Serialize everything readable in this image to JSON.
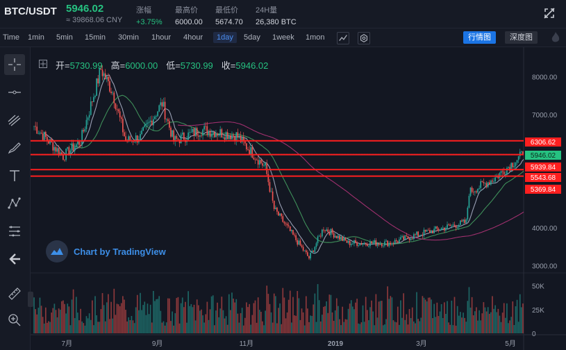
{
  "header": {
    "pair": "BTC/USDT",
    "price": "5946.02",
    "cny": "≈ 39868.06 CNY",
    "change_label": "涨幅",
    "change_value": "+3.75%",
    "high_label": "最高价",
    "high_value": "6000.00",
    "low_label": "最低价",
    "low_value": "5674.70",
    "vol_label": "24H量",
    "vol_value": "26,380 BTC",
    "icon": "fullscreen-off-icon"
  },
  "toolbar": {
    "intervals": [
      "Time",
      "1min",
      "5min",
      "15min",
      "30min",
      "1hour",
      "4hour",
      "1day",
      "5day",
      "1week",
      "1mon"
    ],
    "active_interval": "1day",
    "tab_candles": "行情图",
    "tab_depth": "深度图"
  },
  "legend": {
    "open_label": "开=",
    "open_value": "5730.99",
    "high_label": "高=",
    "high_value": "6000.00",
    "low_label": "低=",
    "low_value": "5730.99",
    "close_label": "收=",
    "close_value": "5946.02"
  },
  "watermark": "Chart by TradingView",
  "price_axis": {
    "ticks": [
      "8000.00",
      "7000.00",
      "4000.00",
      "3000.00"
    ],
    "tick_values": [
      8000,
      7000,
      4000,
      3000
    ],
    "levels": [
      {
        "label": "6306.62",
        "value": 6306.62,
        "color": "#ff1f1f"
      },
      {
        "label": "5946.02",
        "value": 5946.02,
        "color": "#26c281"
      },
      {
        "label": "5939.84",
        "value": 5939.84,
        "color": "#ff1f1f"
      },
      {
        "label": "5543.68",
        "value": 5543.68,
        "color": "#ff1f1f"
      },
      {
        "label": "5369.84",
        "value": 5369.84,
        "color": "#ff1f1f"
      }
    ]
  },
  "volume_axis": {
    "ticks": [
      "50K",
      "25K",
      "0"
    ]
  },
  "time_axis": {
    "ticks": [
      "7月",
      "9月",
      "11月",
      "2019",
      "3月",
      "5月"
    ]
  },
  "colors": {
    "up": "#26a69a",
    "down": "#ef5350",
    "line_level": "#ff1f1f",
    "ma_fast": "#9aa0b5",
    "ma_mid": "#3f8f5a",
    "ma_slow": "#a0306e"
  },
  "chart_data": {
    "type": "candlestick",
    "x_range": [
      "2018-06-08",
      "2019-05-10"
    ],
    "key_points": [
      {
        "date": "2018-06-08",
        "close": 6700
      },
      {
        "date": "2018-06-28",
        "close": 5900
      },
      {
        "date": "2018-07-10",
        "close": 6300
      },
      {
        "date": "2018-07-24",
        "close": 8200
      },
      {
        "date": "2018-08-01",
        "close": 7600
      },
      {
        "date": "2018-08-10",
        "close": 6300
      },
      {
        "date": "2018-08-20",
        "close": 6400
      },
      {
        "date": "2018-09-04",
        "close": 7300
      },
      {
        "date": "2018-09-12",
        "close": 6300
      },
      {
        "date": "2018-10-01",
        "close": 6600
      },
      {
        "date": "2018-10-25",
        "close": 6450
      },
      {
        "date": "2018-11-14",
        "close": 5600
      },
      {
        "date": "2018-11-20",
        "close": 4500
      },
      {
        "date": "2018-12-14",
        "close": 3200
      },
      {
        "date": "2018-12-24",
        "close": 4000
      },
      {
        "date": "2019-01-10",
        "close": 3600
      },
      {
        "date": "2019-02-08",
        "close": 3600
      },
      {
        "date": "2019-03-01",
        "close": 3850
      },
      {
        "date": "2019-04-01",
        "close": 4150
      },
      {
        "date": "2019-04-03",
        "close": 4950
      },
      {
        "date": "2019-04-20",
        "close": 5300
      },
      {
        "date": "2019-05-10",
        "close": 5946.02
      }
    ],
    "y_range": [
      2900,
      8600
    ],
    "volume_range": [
      0,
      60000
    ]
  }
}
